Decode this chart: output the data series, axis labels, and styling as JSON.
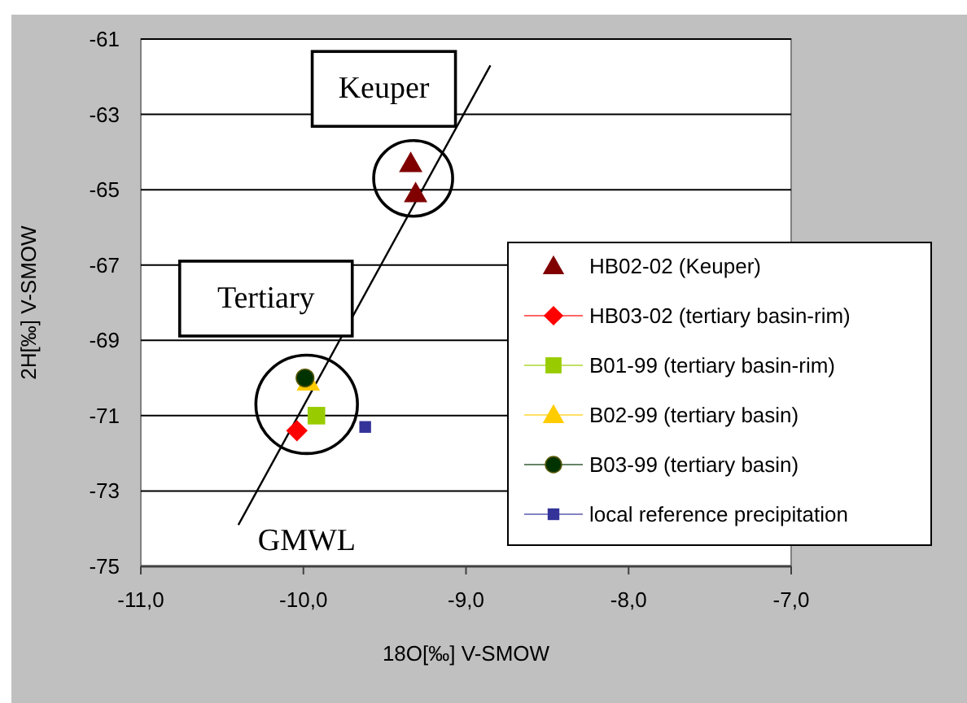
{
  "chart_data": {
    "type": "scatter",
    "xlabel": "18O[‰] V-SMOW",
    "ylabel": "2H[‰] V-SMOW",
    "xlim": [
      -11,
      -7
    ],
    "ylim": [
      -75,
      -61
    ],
    "xticks": [
      {
        "value": -11,
        "label": "-11,0"
      },
      {
        "value": -10,
        "label": "-10,0"
      },
      {
        "value": -9,
        "label": "-9,0"
      },
      {
        "value": -8,
        "label": "-8,0"
      },
      {
        "value": -7,
        "label": "-7,0"
      }
    ],
    "yticks": [
      -75,
      -73,
      -71,
      -69,
      -67,
      -65,
      -63,
      -61
    ],
    "grid": "y",
    "legend": "right",
    "series": [
      {
        "name": "HB02-02 (Keuper)",
        "color": "#800000",
        "marker": "triangle",
        "x": [
          -9.34,
          -9.31
        ],
        "values": [
          -64.3,
          -65.1
        ]
      },
      {
        "name": "HB03-02 (tertiary basin-rim)",
        "color": "#ff0000",
        "marker": "diamond",
        "x": [
          -10.04
        ],
        "values": [
          -71.4
        ]
      },
      {
        "name": "B01-99 (tertiary basin-rim)",
        "color": "#99cc00",
        "marker": "square",
        "x": [
          -9.92
        ],
        "values": [
          -71.0
        ]
      },
      {
        "name": "B02-99 (tertiary basin)",
        "color": "#ffcc00",
        "marker": "triangle",
        "x": [
          -9.97
        ],
        "values": [
          -70.1
        ]
      },
      {
        "name": "B03-99 (tertiary basin)",
        "color": "#003300",
        "marker": "circle",
        "x": [
          -9.99
        ],
        "values": [
          -70.0
        ]
      },
      {
        "name": "local reference precipitation",
        "color": "#333399",
        "marker": "square",
        "x": [
          -9.62
        ],
        "values": [
          -71.3
        ]
      },
      {
        "type": "line",
        "color": "#000000",
        "x": [
          -10.4,
          -8.85
        ],
        "values": [
          -73.9,
          -61.7
        ]
      }
    ],
    "annotations": [
      "Keuper",
      "Tertiary",
      "GMWL"
    ]
  }
}
